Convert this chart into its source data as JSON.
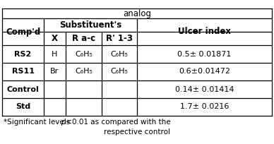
{
  "title": "analog",
  "comp_header": "Comp'd",
  "sub_header": "Substituent's",
  "ulcer_header": "Ulcer index",
  "sub_cols": [
    "X",
    "R a-c",
    "R' 1-3"
  ],
  "rows": [
    [
      "RS2",
      "H",
      "C₆H₅",
      "C₆H₅",
      "0.5± 0.01871"
    ],
    [
      "RS11",
      "Br",
      "C₆H₅",
      "C₆H₅",
      "0.6±0.01472"
    ],
    [
      "Control",
      "",
      "",
      "",
      "0.14± 0.01414"
    ],
    [
      "Std",
      "",
      "",
      "",
      "1.7± 0.0216"
    ]
  ],
  "footnote_line1": "*Significant levels ",
  "footnote_italic": "p",
  "footnote_line1b": " <0.01 as compared with the",
  "footnote_line2": "respective control",
  "background_color": "#ffffff",
  "border_color": "#000000",
  "text_color": "#000000",
  "title_fontsize": 8.5,
  "header_fontsize": 8.5,
  "cell_fontsize": 8.0,
  "footnote_fontsize": 7.5
}
